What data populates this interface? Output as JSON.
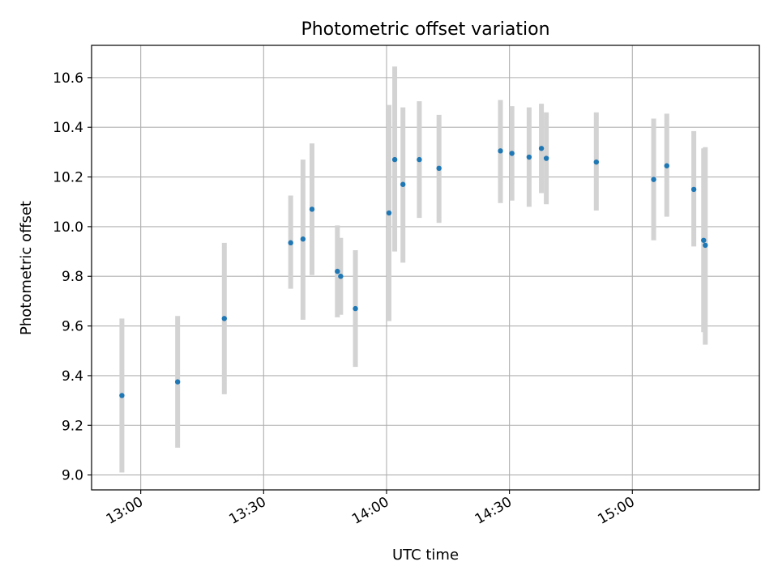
{
  "chart_data": {
    "type": "scatter",
    "title": "Photometric offset variation",
    "xlabel": "UTC time",
    "ylabel": "Photometric offset",
    "xlim": [
      "12:48",
      "15:31"
    ],
    "ylim": [
      8.94,
      10.73
    ],
    "x_ticks": [
      "13:00",
      "13:30",
      "14:00",
      "14:30",
      "15:00"
    ],
    "y_ticks": [
      9.0,
      9.2,
      9.4,
      9.6,
      9.8,
      10.0,
      10.2,
      10.4,
      10.6
    ],
    "y_tick_labels": [
      "9.0",
      "9.2",
      "9.4",
      "9.6",
      "9.8",
      "10.0",
      "10.2",
      "10.4",
      "10.6"
    ],
    "grid": true,
    "colors": {
      "point": "#1f77b4",
      "errorbar": "#d3d3d3",
      "grid": "#b0b0b0"
    },
    "series": [
      {
        "points": [
          {
            "x": "12:55:24",
            "y": 9.32,
            "ylow": 9.01,
            "yhigh": 9.63
          },
          {
            "x": "13:09:00",
            "y": 9.375,
            "ylow": 9.11,
            "yhigh": 9.64
          },
          {
            "x": "13:20:24",
            "y": 9.63,
            "ylow": 9.325,
            "yhigh": 9.935
          },
          {
            "x": "13:36:36",
            "y": 9.935,
            "ylow": 9.75,
            "yhigh": 10.125
          },
          {
            "x": "13:39:36",
            "y": 9.95,
            "ylow": 9.625,
            "yhigh": 10.27
          },
          {
            "x": "13:41:48",
            "y": 10.07,
            "ylow": 9.805,
            "yhigh": 10.335
          },
          {
            "x": "13:48:00",
            "y": 9.82,
            "ylow": 9.635,
            "yhigh": 10.005
          },
          {
            "x": "13:48:48",
            "y": 9.8,
            "ylow": 9.645,
            "yhigh": 9.955
          },
          {
            "x": "13:52:24",
            "y": 9.67,
            "ylow": 9.435,
            "yhigh": 9.905
          },
          {
            "x": "14:00:36",
            "y": 10.055,
            "ylow": 9.62,
            "yhigh": 10.49
          },
          {
            "x": "14:02:00",
            "y": 10.27,
            "ylow": 9.9,
            "yhigh": 10.645
          },
          {
            "x": "14:04:00",
            "y": 10.17,
            "ylow": 9.855,
            "yhigh": 10.48
          },
          {
            "x": "14:08:00",
            "y": 10.27,
            "ylow": 10.035,
            "yhigh": 10.505
          },
          {
            "x": "14:12:48",
            "y": 10.235,
            "ylow": 10.015,
            "yhigh": 10.45
          },
          {
            "x": "14:27:48",
            "y": 10.305,
            "ylow": 10.095,
            "yhigh": 10.51
          },
          {
            "x": "14:30:36",
            "y": 10.295,
            "ylow": 10.105,
            "yhigh": 10.485
          },
          {
            "x": "14:34:48",
            "y": 10.28,
            "ylow": 10.08,
            "yhigh": 10.48
          },
          {
            "x": "14:37:48",
            "y": 10.315,
            "ylow": 10.135,
            "yhigh": 10.495
          },
          {
            "x": "14:39:00",
            "y": 10.275,
            "ylow": 10.09,
            "yhigh": 10.46
          },
          {
            "x": "14:51:12",
            "y": 10.26,
            "ylow": 10.065,
            "yhigh": 10.46
          },
          {
            "x": "15:05:12",
            "y": 10.19,
            "ylow": 9.945,
            "yhigh": 10.435
          },
          {
            "x": "15:08:24",
            "y": 10.245,
            "ylow": 10.04,
            "yhigh": 10.455
          },
          {
            "x": "15:15:00",
            "y": 10.15,
            "ylow": 9.92,
            "yhigh": 10.385
          },
          {
            "x": "15:17:24",
            "y": 9.945,
            "ylow": 9.575,
            "yhigh": 10.315
          },
          {
            "x": "15:17:48",
            "y": 9.925,
            "ylow": 9.525,
            "yhigh": 10.32
          }
        ]
      }
    ]
  }
}
